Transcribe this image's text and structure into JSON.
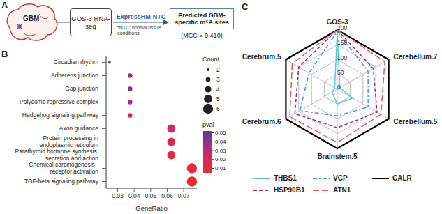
{
  "diagram": {
    "panel": "A",
    "source": "GBM",
    "dataset": "GOS-3 RNA-seq",
    "method": "ExpressRM-NTC",
    "note": "*NTC: normal tissue conditions",
    "output": "Predicted GBM-specific m⁶A sites",
    "metric": "(MCC = 0.410)"
  },
  "chart_data": [
    {
      "panel": "B",
      "type": "scatter",
      "x_label": "GeneRatio",
      "categories": [
        "TGF-beta signaling pathway",
        "Chemical carcinogenesis - receptor activation",
        "Parathyroid hormone synthesis, secretion and action",
        "Protein processing in endoplasmic reticulum",
        "Axon guidance",
        "Hedgehog signaling pathway",
        "Polycomb repressive complex",
        "Gap junction",
        "Adherens junction",
        "Circadian rhythm"
      ],
      "x": [
        0.075,
        0.075,
        0.0625,
        0.0625,
        0.0625,
        0.0375,
        0.0375,
        0.0375,
        0.0375,
        0.025
      ],
      "sizes": [
        6,
        6,
        5,
        5,
        5,
        3,
        3,
        3,
        3,
        2
      ],
      "pvals": [
        0.005,
        0.008,
        0.01,
        0.018,
        0.022,
        0.015,
        0.035,
        0.045,
        0.046,
        0.05
      ],
      "size_legend": {
        "title": "Count",
        "values": [
          2,
          3,
          4,
          5,
          6
        ]
      },
      "colorbar": {
        "title": "pval",
        "range": [
          0.005,
          0.052
        ],
        "ticks": [
          0.01,
          0.02,
          0.03,
          0.04,
          0.05
        ],
        "colors": [
          "#ef2b2d",
          "#c4287a",
          "#5a3c9c"
        ]
      },
      "xlim": [
        0.023,
        0.078
      ],
      "xticks": [
        0.03,
        0.04,
        0.05,
        0.06,
        0.07
      ],
      "grid": false
    },
    {
      "panel": "C",
      "type": "radar",
      "categories": [
        "GOS-3",
        "Cerebellum.7",
        "Cerebellum.5",
        "Brainstem.5",
        "Cerebrum.6",
        "Cerebrum.5"
      ],
      "series": [
        {
          "name": "THBS1",
          "color": "#5bc8d0",
          "line_style": "solid",
          "values": [
            195,
            10,
            60,
            50,
            20,
            10
          ]
        },
        {
          "name": "VCP",
          "color": "#4a90d9",
          "line_style": "dashdot",
          "values": [
            195,
            120,
            120,
            90,
            145,
            110
          ]
        },
        {
          "name": "CALR",
          "color": "#000000",
          "line_style": "solid",
          "values": [
            200,
            200,
            200,
            200,
            200,
            200
          ]
        },
        {
          "name": "HSP90B1",
          "color": "#8b2a8b",
          "line_style": "dashed",
          "values": [
            200,
            140,
            155,
            130,
            165,
            150
          ]
        },
        {
          "name": "ATN1",
          "color": "#e05a5a",
          "line_style": "longdash",
          "values": [
            200,
            185,
            170,
            180,
            185,
            175
          ]
        }
      ],
      "rlim": [
        0,
        200
      ],
      "rticks": [
        0,
        50,
        100,
        150,
        200
      ],
      "grid": true,
      "legend": "bottom"
    }
  ]
}
